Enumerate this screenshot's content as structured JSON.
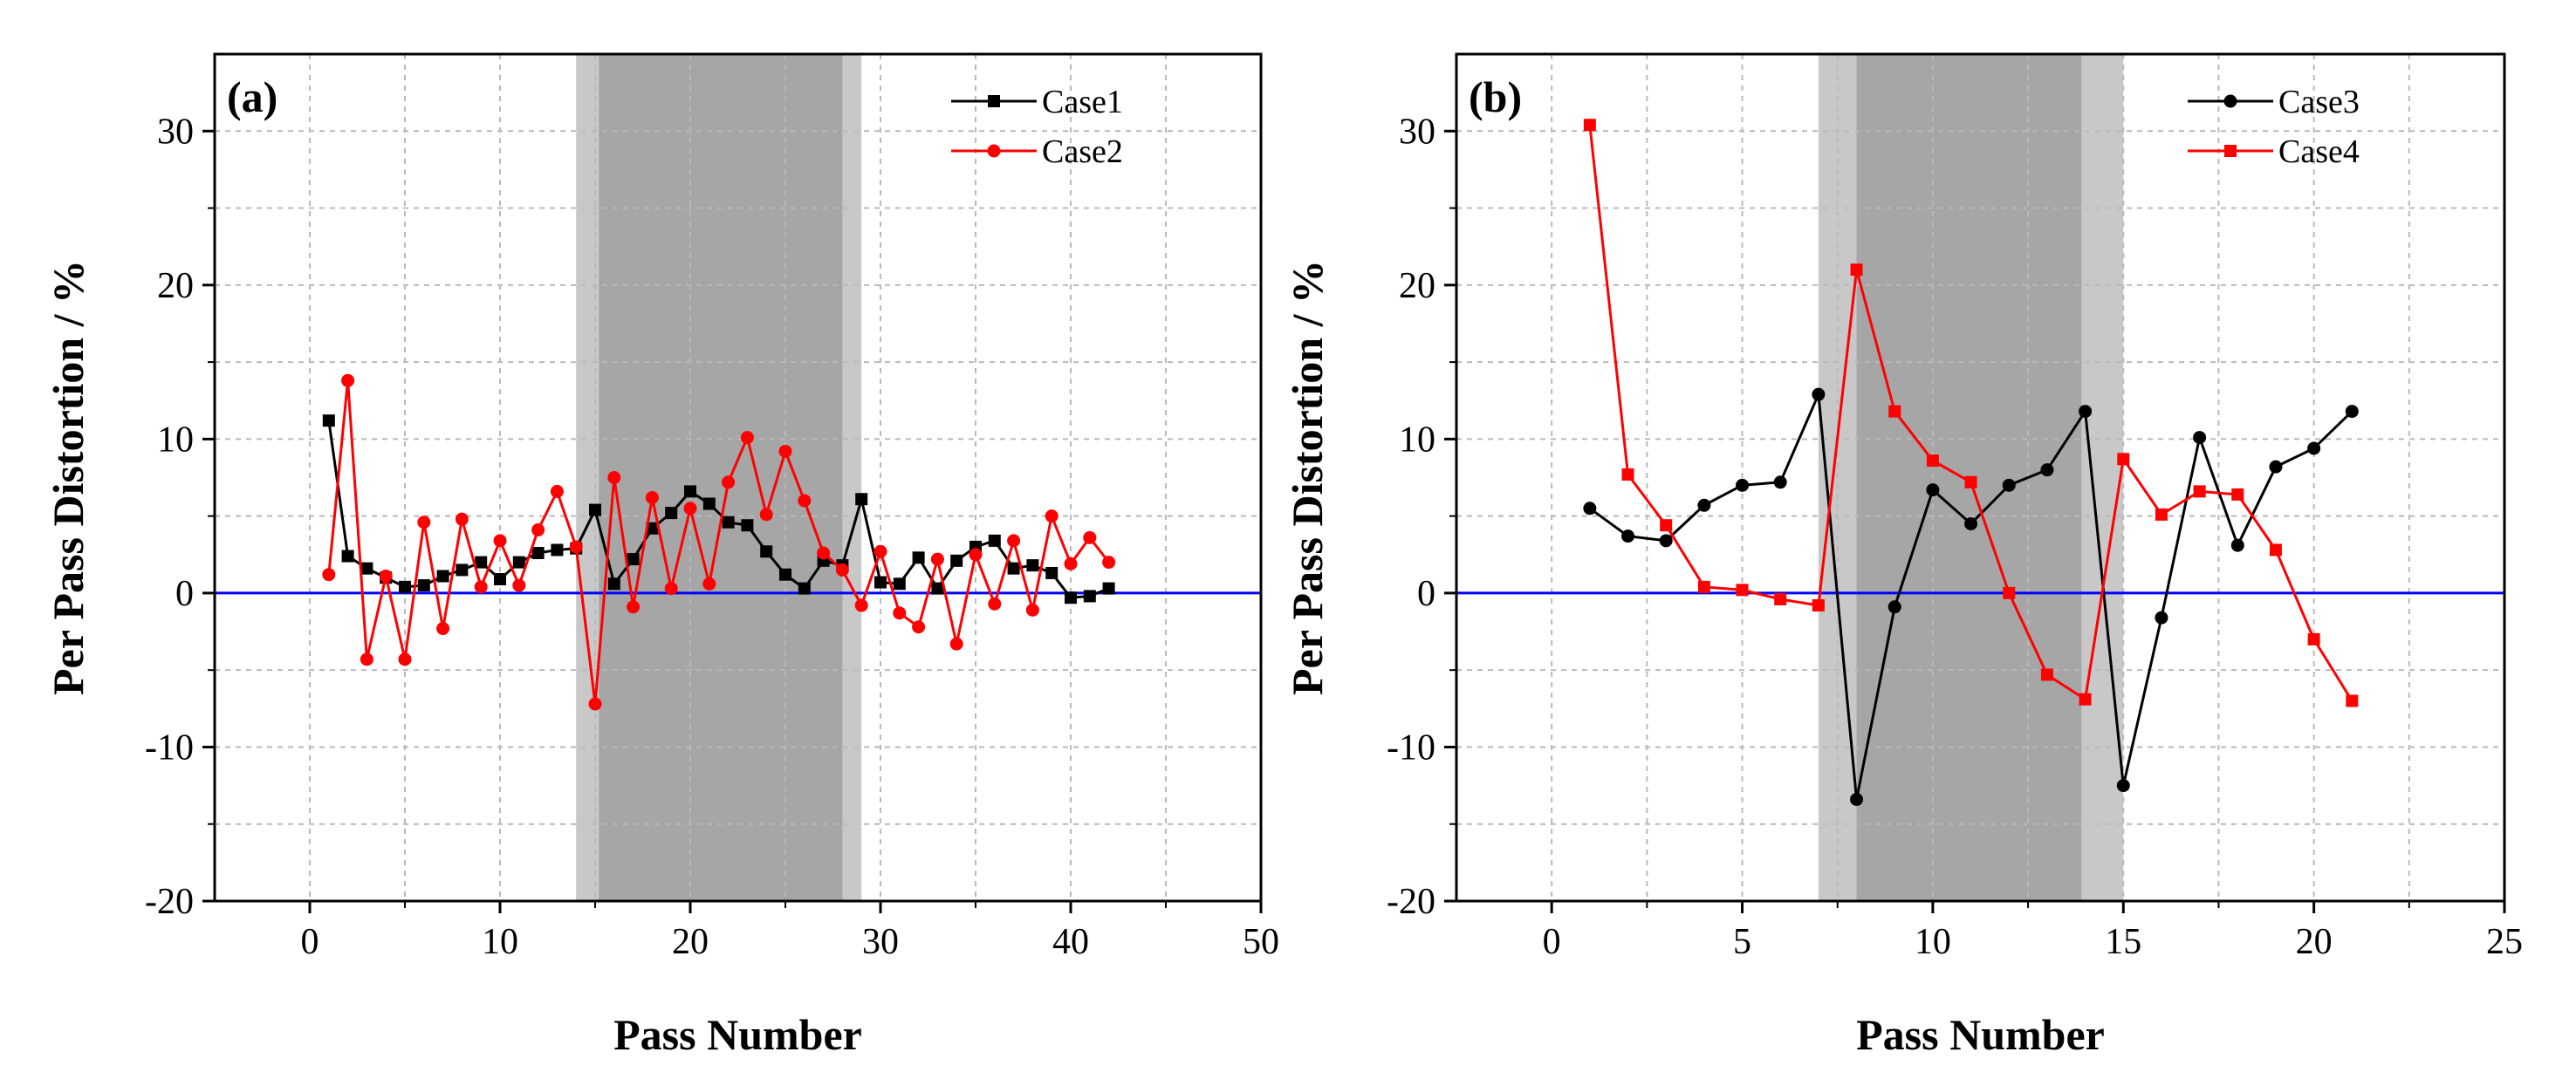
{
  "chart_data": [
    {
      "id": "a",
      "panel_label": "(a)",
      "type": "line",
      "xlabel": "Pass Number",
      "ylabel": "Per Pass Distortion / %",
      "xlim": [
        -5,
        50
      ],
      "ylim": [
        -20,
        35
      ],
      "xticks": [
        0,
        10,
        20,
        30,
        40,
        50
      ],
      "yticks": [
        -20,
        -10,
        0,
        10,
        20,
        30
      ],
      "grid": true,
      "legend_position": "top-right",
      "reference_line": {
        "y": 0,
        "color": "#0000ff"
      },
      "shaded_regions": [
        {
          "x0": 14,
          "x1": 29,
          "color": "#c8c8c8"
        },
        {
          "x0": 15.2,
          "x1": 28,
          "color": "#a6a6a6"
        }
      ],
      "series": [
        {
          "name": "Case1",
          "color": "#000000",
          "marker": "square",
          "x": [
            1,
            2,
            3,
            4,
            5,
            6,
            7,
            8,
            9,
            10,
            11,
            12,
            13,
            14,
            15,
            16,
            17,
            18,
            19,
            20,
            21,
            22,
            23,
            24,
            25,
            26,
            27,
            28,
            29,
            30,
            31,
            32,
            33,
            34,
            35,
            36,
            37,
            38,
            39,
            40,
            41,
            42
          ],
          "y": [
            11.2,
            2.4,
            1.6,
            1.0,
            0.4,
            0.5,
            1.1,
            1.5,
            2.0,
            0.9,
            2.0,
            2.6,
            2.8,
            2.9,
            5.4,
            0.6,
            2.2,
            4.2,
            5.2,
            6.6,
            5.8,
            4.6,
            4.4,
            2.7,
            1.2,
            0.3,
            2.1,
            1.8,
            6.1,
            0.7,
            0.6,
            2.3,
            0.3,
            2.1,
            3.0,
            3.4,
            1.6,
            1.8,
            1.3,
            -0.3,
            -0.2,
            0.3
          ]
        },
        {
          "name": "Case2",
          "color": "#ff0000",
          "marker": "circle",
          "x": [
            1,
            2,
            3,
            4,
            5,
            6,
            7,
            8,
            9,
            10,
            11,
            12,
            13,
            14,
            15,
            16,
            17,
            18,
            19,
            20,
            21,
            22,
            23,
            24,
            25,
            26,
            27,
            28,
            29,
            30,
            31,
            32,
            33,
            34,
            35,
            36,
            37,
            38,
            39,
            40,
            41,
            42
          ],
          "y": [
            1.2,
            13.8,
            -4.3,
            1.1,
            -4.3,
            4.6,
            -2.3,
            4.8,
            0.4,
            3.4,
            0.5,
            4.1,
            6.6,
            3.0,
            -7.2,
            7.5,
            -0.9,
            6.2,
            0.3,
            5.5,
            0.6,
            7.2,
            10.1,
            5.1,
            9.2,
            6.0,
            2.6,
            1.5,
            -0.8,
            2.7,
            -1.3,
            -2.2,
            2.2,
            -3.3,
            2.5,
            -0.7,
            3.4,
            -1.1,
            5.0,
            1.9,
            3.6,
            2.0
          ]
        }
      ]
    },
    {
      "id": "b",
      "panel_label": "(b)",
      "type": "line",
      "xlabel": "Pass Number",
      "ylabel": "Per Pass Distortion / %",
      "xlim": [
        -2.5,
        25
      ],
      "ylim": [
        -20,
        35
      ],
      "xticks": [
        0,
        5,
        10,
        15,
        20,
        25
      ],
      "yticks": [
        -20,
        -10,
        0,
        10,
        20,
        30
      ],
      "grid": true,
      "legend_position": "top-right",
      "reference_line": {
        "y": 0,
        "color": "#0000ff"
      },
      "shaded_regions": [
        {
          "x0": 7,
          "x1": 15,
          "color": "#c8c8c8"
        },
        {
          "x0": 8,
          "x1": 13.9,
          "color": "#a6a6a6"
        }
      ],
      "series": [
        {
          "name": "Case3",
          "color": "#000000",
          "marker": "circle",
          "x": [
            1,
            2,
            3,
            4,
            5,
            6,
            7,
            8,
            9,
            10,
            11,
            12,
            13,
            14,
            15,
            16,
            17,
            18,
            19,
            20,
            21
          ],
          "y": [
            5.5,
            3.7,
            3.4,
            5.7,
            7.0,
            7.2,
            12.9,
            -13.4,
            -0.9,
            6.7,
            4.5,
            7.0,
            8.0,
            11.8,
            -12.5,
            -1.6,
            10.1,
            3.1,
            8.2,
            9.4,
            11.8
          ]
        },
        {
          "name": "Case4",
          "color": "#ff0000",
          "marker": "square",
          "x": [
            1,
            2,
            3,
            4,
            5,
            6,
            7,
            8,
            9,
            10,
            11,
            12,
            13,
            14,
            15,
            16,
            17,
            18,
            19,
            20,
            21
          ],
          "y": [
            30.4,
            7.7,
            4.4,
            0.4,
            0.2,
            -0.4,
            -0.8,
            21.0,
            11.8,
            8.6,
            7.2,
            0.0,
            -5.3,
            -6.9,
            8.7,
            5.1,
            6.6,
            6.4,
            2.8,
            -3.0,
            -7.0
          ]
        }
      ]
    }
  ]
}
